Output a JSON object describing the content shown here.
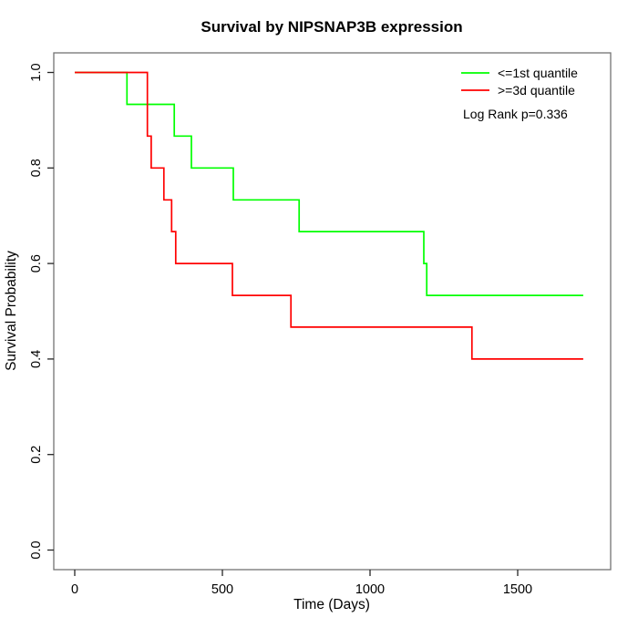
{
  "chart_data": {
    "type": "line",
    "subtype": "kaplan-meier-step",
    "title": "Survival by NIPSNAP3B expression",
    "xlabel": "Time (Days)",
    "ylabel": "Survival Probability",
    "xlim": [
      0,
      1815
    ],
    "ylim": [
      0,
      1
    ],
    "grid": false,
    "legend_position": "top-right-inside",
    "annotation": "Log Rank p=0.336",
    "x_axis": {
      "ticks": [
        {
          "label": "0",
          "value": 0
        },
        {
          "label": "500",
          "value": 500
        },
        {
          "label": "1000",
          "value": 1000
        },
        {
          "label": "1500",
          "value": 1500
        }
      ]
    },
    "y_axis": {
      "ticks": [
        {
          "label": "0.0",
          "value": 0.0
        },
        {
          "label": "0.2",
          "value": 0.2
        },
        {
          "label": "0.4",
          "value": 0.4
        },
        {
          "label": "0.6",
          "value": 0.6
        },
        {
          "label": "0.8",
          "value": 0.8
        },
        {
          "label": "1.0",
          "value": 1.0
        }
      ]
    },
    "legend": {
      "entries": [
        {
          "label": "<=1st quantile",
          "color": "#00ff00"
        },
        {
          "label": ">=3d quantile",
          "color": "#ff0000"
        }
      ]
    },
    "series": [
      {
        "name": "<=1st quantile",
        "color": "#00ff00",
        "points": [
          [
            0,
            1.0
          ],
          [
            177,
            1.0
          ],
          [
            177,
            0.9333
          ],
          [
            337,
            0.9333
          ],
          [
            337,
            0.8667
          ],
          [
            395,
            0.8667
          ],
          [
            395,
            0.8
          ],
          [
            537,
            0.8
          ],
          [
            537,
            0.7333
          ],
          [
            760,
            0.7333
          ],
          [
            760,
            0.6667
          ],
          [
            1182,
            0.6667
          ],
          [
            1182,
            0.6
          ],
          [
            1192,
            0.6
          ],
          [
            1192,
            0.5333
          ],
          [
            1722,
            0.5333
          ]
        ]
      },
      {
        "name": ">=3d quantile",
        "color": "#ff0000",
        "points": [
          [
            0,
            1.0
          ],
          [
            246,
            1.0
          ],
          [
            246,
            0.8667
          ],
          [
            259,
            0.8667
          ],
          [
            259,
            0.8
          ],
          [
            302,
            0.8
          ],
          [
            302,
            0.7333
          ],
          [
            328,
            0.7333
          ],
          [
            328,
            0.6667
          ],
          [
            342,
            0.6667
          ],
          [
            342,
            0.6
          ],
          [
            534,
            0.6
          ],
          [
            534,
            0.5333
          ],
          [
            732,
            0.5333
          ],
          [
            732,
            0.4667
          ],
          [
            1345,
            0.4667
          ],
          [
            1345,
            0.4
          ],
          [
            1722,
            0.4
          ]
        ]
      }
    ],
    "colors": {
      "box_stroke": "#737373",
      "tick_stroke": "#262626",
      "text": "#000000",
      "background": "#ffffff"
    }
  }
}
